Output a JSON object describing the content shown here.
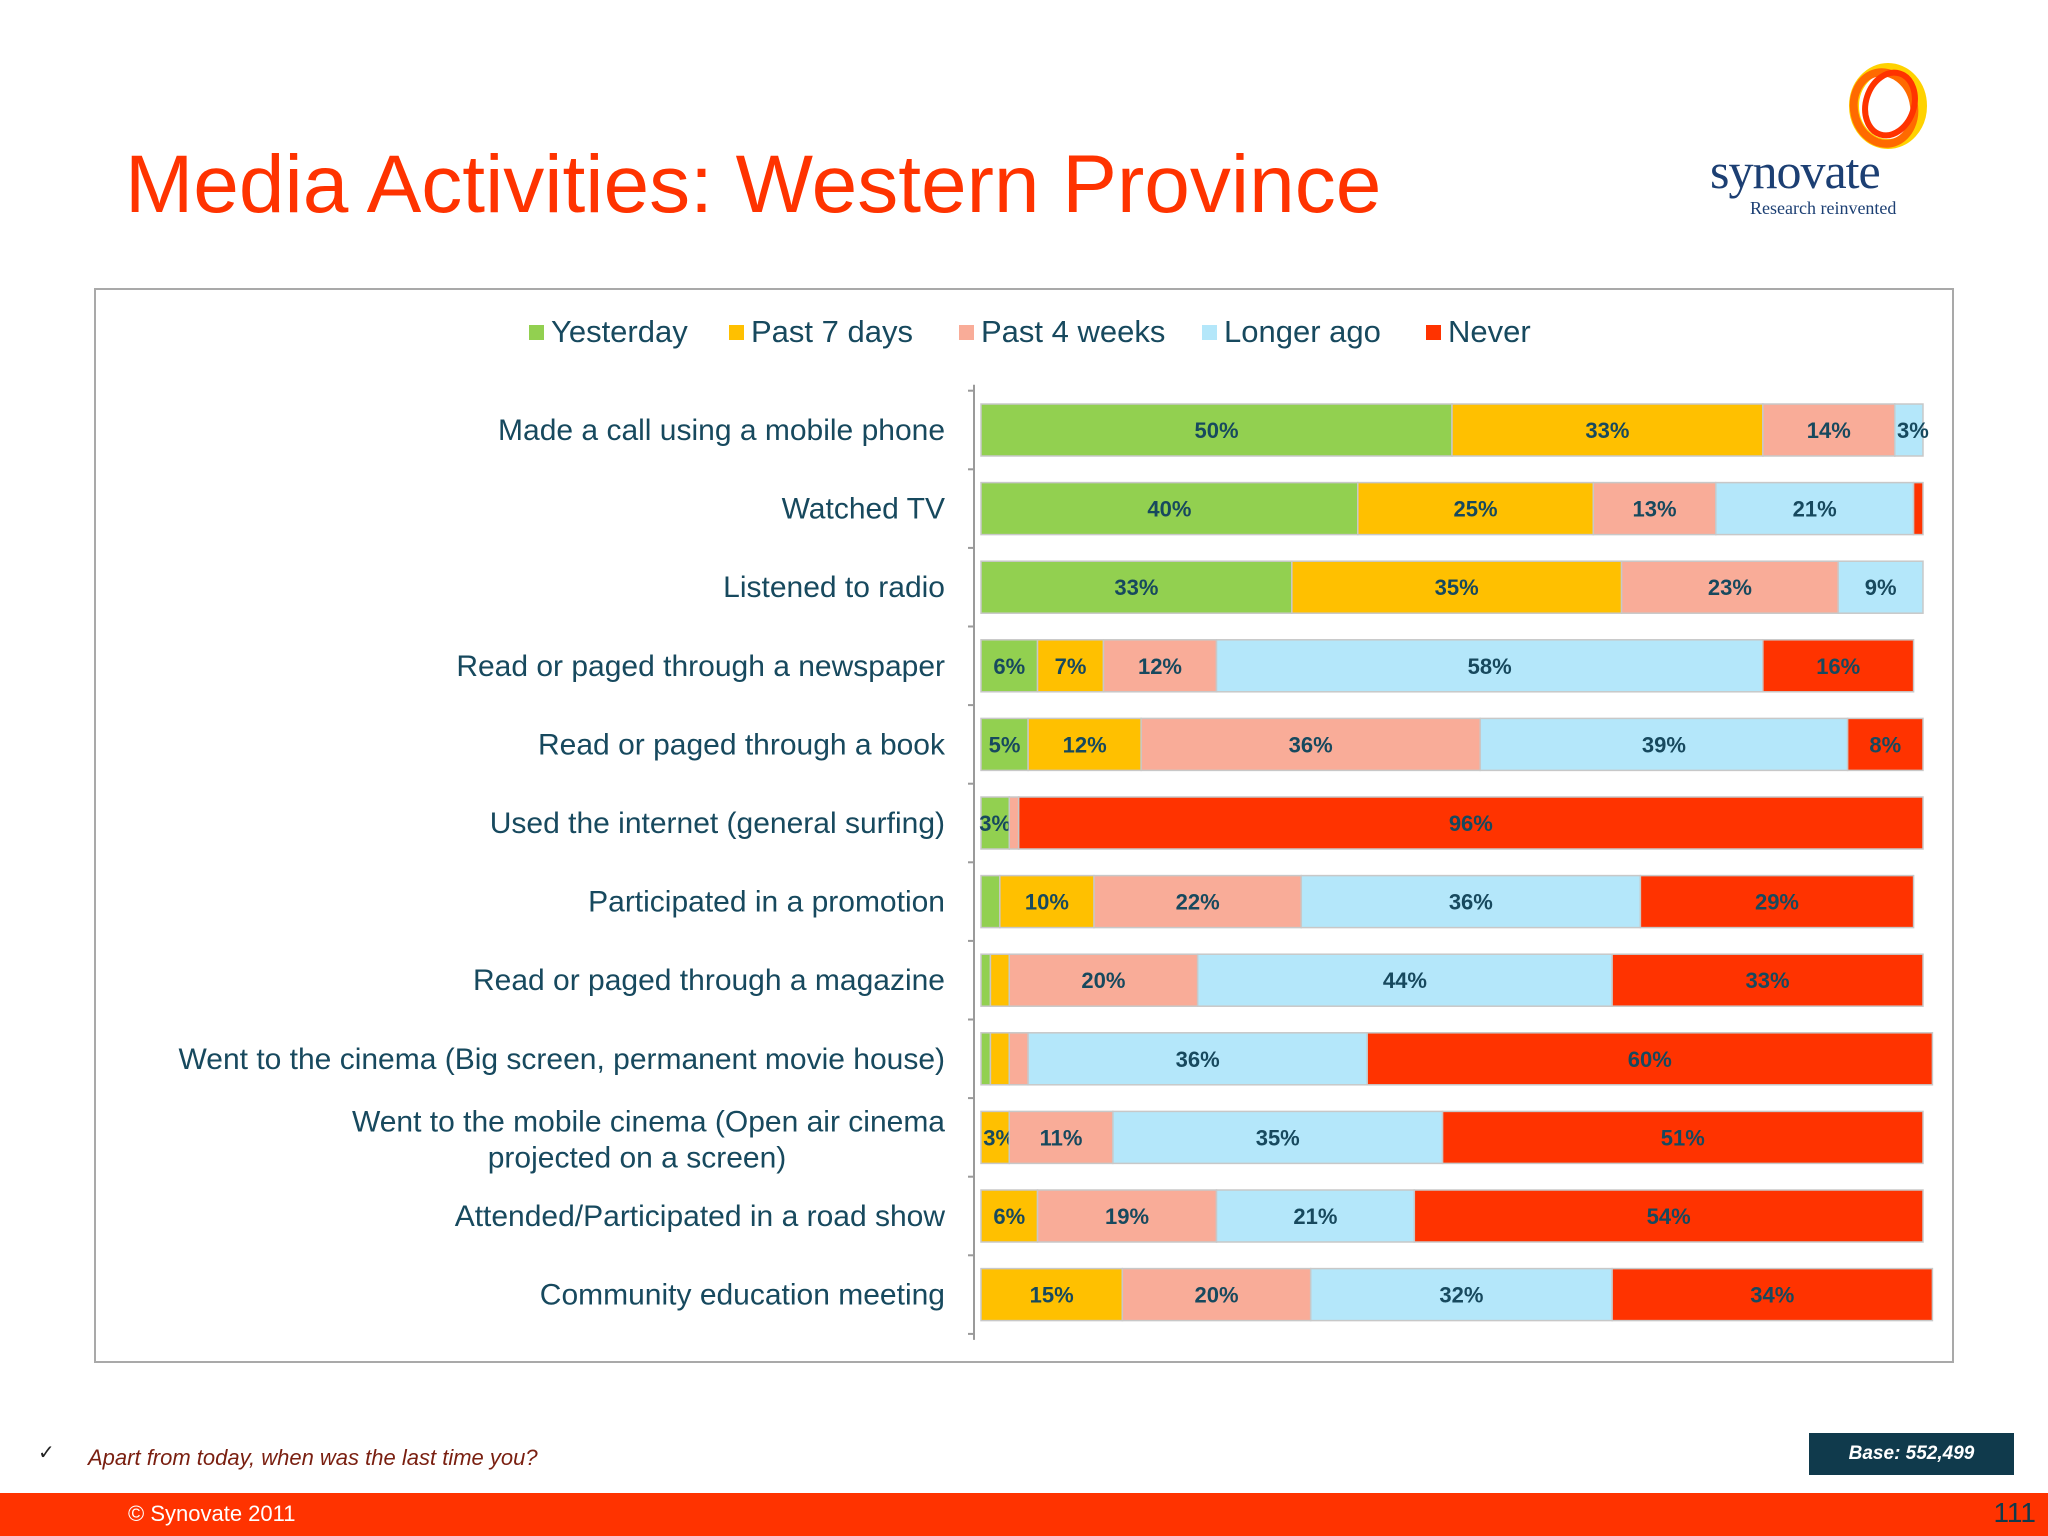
{
  "page": {
    "title": "Media Activities: Western Province",
    "logo_word": "synovate",
    "logo_tagline": "Research reinvented",
    "footnote": "Apart from today, when was the last time you?",
    "footnote_check": "✓",
    "base": "Base: 552,499",
    "copyright": "© Synovate 2011",
    "page_number": "111"
  },
  "colors": {
    "title": "#ff3300",
    "yesterday": "#92d050",
    "past7": "#ffc000",
    "past4w": "#f9ac98",
    "longer": "#b4e7fa",
    "never": "#ff3300",
    "label_text": "#17495e",
    "footer_bar": "#ff3300",
    "base_box": "#103a4c"
  },
  "chart_data": {
    "type": "bar",
    "orientation": "horizontal",
    "stacked": true,
    "percent": true,
    "legend_position": "top",
    "categories": [
      "Made a call using a mobile phone",
      "Watched TV",
      "Listened to radio",
      "Read or paged through a newspaper",
      "Read or paged through a book",
      "Used the internet (general surfing)",
      "Participated in a promotion",
      "Read or paged through a magazine",
      "Went to the cinema (Big screen, permanent movie house)",
      "Went to the mobile cinema (Open air cinema projected on a screen)",
      "Attended/Participated in a road show",
      "Community education meeting"
    ],
    "series": [
      {
        "name": "Yesterday",
        "color": "#92d050",
        "values": [
          50,
          40,
          33,
          6,
          5,
          3,
          2,
          1,
          1,
          0,
          0,
          0
        ]
      },
      {
        "name": "Past 7 days",
        "color": "#ffc000",
        "values": [
          33,
          25,
          35,
          7,
          12,
          0,
          10,
          2,
          2,
          3,
          6,
          15
        ]
      },
      {
        "name": "Past 4 weeks",
        "color": "#f9ac98",
        "values": [
          14,
          13,
          23,
          12,
          36,
          1,
          22,
          20,
          2,
          11,
          19,
          20
        ]
      },
      {
        "name": "Longer ago",
        "color": "#b4e7fa",
        "values": [
          3,
          21,
          9,
          58,
          39,
          0,
          36,
          44,
          36,
          35,
          21,
          32
        ]
      },
      {
        "name": "Never",
        "color": "#ff3300",
        "values": [
          0,
          1,
          0,
          16,
          8,
          96,
          29,
          33,
          60,
          51,
          54,
          34
        ]
      }
    ],
    "data_labels": [
      [
        "50%",
        "33%",
        "14%",
        "3%",
        ""
      ],
      [
        "40%",
        "25%",
        "13%",
        "21%",
        ""
      ],
      [
        "33%",
        "35%",
        "23%",
        "9%",
        ""
      ],
      [
        "6%",
        "7%",
        "12%",
        "58%",
        "16%"
      ],
      [
        "5%",
        "12%",
        "36%",
        "39%",
        "8%"
      ],
      [
        "3%",
        "",
        "",
        "",
        "96%"
      ],
      [
        "",
        "10%",
        "22%",
        "36%",
        "29%"
      ],
      [
        "",
        "",
        "20%",
        "44%",
        "33%"
      ],
      [
        "",
        "",
        "",
        "36%",
        "60%"
      ],
      [
        "",
        "3%",
        "11%",
        "35%",
        "51%"
      ],
      [
        "",
        "6%",
        "19%",
        "21%",
        "54%"
      ],
      [
        "",
        "15%",
        "20%",
        "32%",
        "34%"
      ]
    ]
  }
}
